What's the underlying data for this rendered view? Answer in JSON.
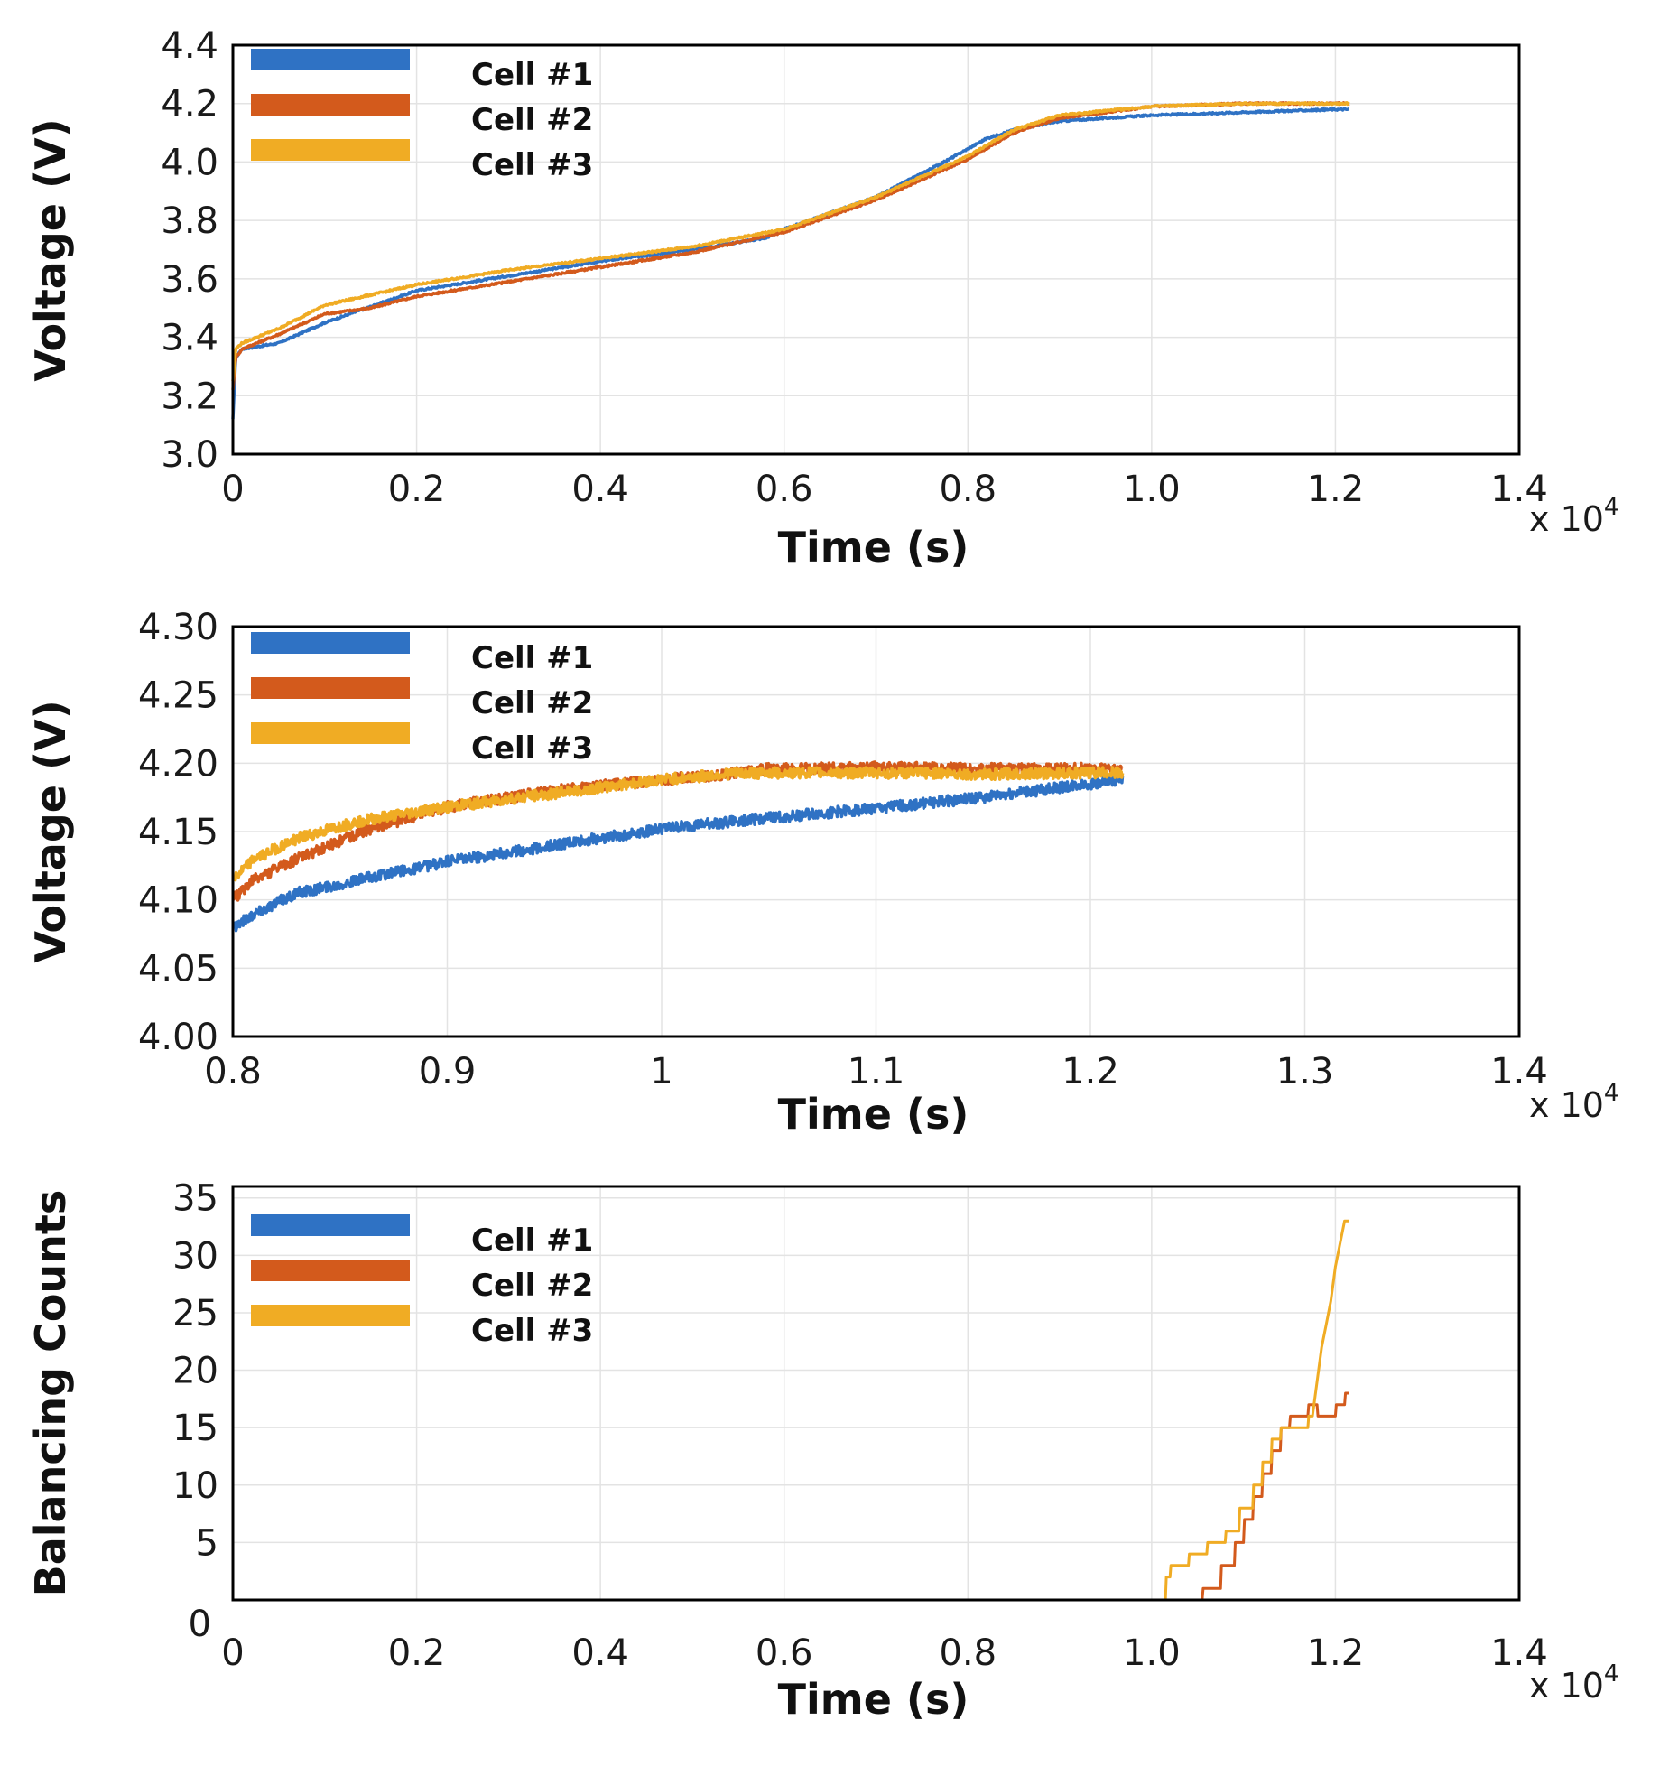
{
  "colors": {
    "cell1": "#2f72c4",
    "cell2": "#d35a1c",
    "cell3": "#f0ac24",
    "grid": "#e3e3e3",
    "axis": "#000000"
  },
  "chart_data": [
    {
      "type": "line",
      "title": "",
      "xlabel": "Time (s)",
      "ylabel": "Voltage (V)",
      "x_multiplier": "x 10",
      "x_multiplier_exp": "4",
      "xlim": [
        0,
        1.4
      ],
      "ylim": [
        3.0,
        4.4
      ],
      "xticks": [
        0,
        0.2,
        0.4,
        0.6,
        0.8,
        1.0,
        1.2,
        1.4
      ],
      "xtick_labels": [
        "0",
        "0.2",
        "0.4",
        "0.6",
        "0.8",
        "1.0",
        "1.2",
        "1.4"
      ],
      "yticks": [
        3.0,
        3.2,
        3.4,
        3.6,
        3.8,
        4.0,
        4.2,
        4.4
      ],
      "ytick_labels": [
        "3.0",
        "3.2",
        "3.4",
        "3.6",
        "3.8",
        "4.0",
        "4.2",
        "4.4"
      ],
      "grid": true,
      "noise": 0.003,
      "legend": "top-left",
      "series": [
        {
          "name": "Cell #1",
          "color_key": "cell1",
          "x": [
            0,
            0.003,
            0.01,
            0.05,
            0.1,
            0.2,
            0.3,
            0.4,
            0.5,
            0.58,
            0.6,
            0.7,
            0.78,
            0.82,
            0.85,
            0.9,
            1.0,
            1.1,
            1.2,
            1.215
          ],
          "y": [
            3.12,
            3.33,
            3.36,
            3.38,
            3.45,
            3.56,
            3.61,
            3.66,
            3.7,
            3.74,
            3.77,
            3.88,
            4.01,
            4.08,
            4.11,
            4.14,
            4.16,
            4.17,
            4.18,
            4.18
          ]
        },
        {
          "name": "Cell #2",
          "color_key": "cell2",
          "x": [
            0,
            0.003,
            0.01,
            0.05,
            0.1,
            0.15,
            0.2,
            0.3,
            0.4,
            0.5,
            0.6,
            0.7,
            0.8,
            0.85,
            0.9,
            1.0,
            1.1,
            1.2,
            1.215
          ],
          "y": [
            3.22,
            3.33,
            3.36,
            3.41,
            3.48,
            3.5,
            3.54,
            3.59,
            3.64,
            3.69,
            3.76,
            3.87,
            4.01,
            4.1,
            4.15,
            4.19,
            4.2,
            4.2,
            4.2
          ]
        },
        {
          "name": "Cell #3",
          "color_key": "cell3",
          "x": [
            0,
            0.003,
            0.01,
            0.05,
            0.1,
            0.2,
            0.3,
            0.4,
            0.5,
            0.6,
            0.7,
            0.8,
            0.85,
            0.9,
            1.0,
            1.1,
            1.2,
            1.215
          ],
          "y": [
            3.25,
            3.36,
            3.38,
            3.43,
            3.51,
            3.58,
            3.63,
            3.67,
            3.71,
            3.77,
            3.88,
            4.02,
            4.11,
            4.16,
            4.19,
            4.2,
            4.2,
            4.2
          ]
        }
      ]
    },
    {
      "type": "line",
      "title": "",
      "xlabel": "Time (s)",
      "ylabel": "Voltage (V)",
      "x_multiplier": "x 10",
      "x_multiplier_exp": "4",
      "xlim": [
        0.8,
        1.4
      ],
      "ylim": [
        4.0,
        4.3
      ],
      "xticks": [
        0.8,
        0.9,
        1.0,
        1.1,
        1.2,
        1.3,
        1.4
      ],
      "xtick_labels": [
        "0.8",
        "0.9",
        "1",
        "1.1",
        "1.2",
        "1.3",
        "1.4"
      ],
      "yticks": [
        4.0,
        4.05,
        4.1,
        4.15,
        4.2,
        4.25,
        4.3
      ],
      "ytick_labels": [
        "4.00",
        "4.05",
        "4.10",
        "4.15",
        "4.20",
        "4.25",
        "4.30"
      ],
      "grid": true,
      "noise": 0.004,
      "legend": "top-left",
      "series": [
        {
          "name": "Cell #1",
          "color_key": "cell1",
          "x": [
            0.8,
            0.81,
            0.83,
            0.86,
            0.9,
            0.95,
            1.0,
            1.05,
            1.1,
            1.15,
            1.2,
            1.215
          ],
          "y": [
            4.08,
            4.09,
            4.105,
            4.115,
            4.128,
            4.14,
            4.152,
            4.16,
            4.167,
            4.175,
            4.185,
            4.188
          ]
        },
        {
          "name": "Cell #2",
          "color_key": "cell2",
          "x": [
            0.8,
            0.81,
            0.83,
            0.86,
            0.9,
            0.95,
            1.0,
            1.03,
            1.05,
            1.1,
            1.15,
            1.2,
            1.215
          ],
          "y": [
            4.1,
            4.115,
            4.13,
            4.15,
            4.168,
            4.18,
            4.188,
            4.192,
            4.196,
            4.197,
            4.196,
            4.196,
            4.195
          ]
        },
        {
          "name": "Cell #3",
          "color_key": "cell3",
          "x": [
            0.8,
            0.81,
            0.83,
            0.86,
            0.9,
            0.95,
            1.0,
            1.03,
            1.05,
            1.1,
            1.15,
            1.2,
            1.215
          ],
          "y": [
            4.115,
            4.13,
            4.145,
            4.158,
            4.168,
            4.178,
            4.188,
            4.192,
            4.193,
            4.193,
            4.192,
            4.193,
            4.193
          ]
        }
      ]
    },
    {
      "type": "line",
      "title": "",
      "xlabel": "Time (s)",
      "ylabel": "Balancing Counts",
      "x_multiplier": "x 10",
      "x_multiplier_exp": "4",
      "xlim": [
        0,
        1.4
      ],
      "ylim": [
        0,
        36
      ],
      "xticks": [
        0,
        0.2,
        0.4,
        0.6,
        0.8,
        1.0,
        1.2,
        1.4
      ],
      "xtick_labels": [
        "0",
        "0.2",
        "0.4",
        "0.6",
        "0.8",
        "1.0",
        "1.2",
        "1.4"
      ],
      "yticks": [
        5,
        10,
        15,
        20,
        25,
        30,
        35
      ],
      "ytick_labels": [
        "5",
        "10",
        "15",
        "20",
        "25",
        "30",
        "35"
      ],
      "extra_tick_label": "0",
      "grid": true,
      "noise": 0,
      "legend": "top-left",
      "series": [
        {
          "name": "Cell #1",
          "color_key": "cell1",
          "x": [
            0,
            1.215
          ],
          "y": [
            0,
            0
          ]
        },
        {
          "name": "Cell #2",
          "color_key": "cell2",
          "x": [
            0,
            1.055,
            1.056,
            1.075,
            1.076,
            1.09,
            1.091,
            1.1,
            1.101,
            1.11,
            1.111,
            1.12,
            1.121,
            1.13,
            1.131,
            1.14,
            1.141,
            1.15,
            1.151,
            1.17,
            1.171,
            1.18,
            1.181,
            1.2,
            1.201,
            1.21,
            1.211,
            1.215
          ],
          "y": [
            0,
            0,
            1,
            1,
            3,
            3,
            5,
            5,
            7,
            7,
            9,
            9,
            11,
            11,
            13,
            13,
            15,
            15,
            16,
            16,
            17,
            17,
            16,
            16,
            17,
            17,
            18,
            18
          ]
        },
        {
          "name": "Cell #3",
          "color_key": "cell3",
          "x": [
            0,
            1.015,
            1.016,
            1.02,
            1.021,
            1.04,
            1.041,
            1.06,
            1.061,
            1.08,
            1.081,
            1.095,
            1.096,
            1.11,
            1.111,
            1.12,
            1.121,
            1.13,
            1.131,
            1.14,
            1.141,
            1.17,
            1.171,
            1.175,
            1.18,
            1.185,
            1.19,
            1.195,
            1.2,
            1.205,
            1.21,
            1.215
          ],
          "y": [
            0,
            0,
            2,
            2,
            3,
            3,
            4,
            4,
            5,
            5,
            6,
            6,
            8,
            8,
            10,
            10,
            12,
            12,
            14,
            14,
            15,
            15,
            16,
            16,
            19,
            22,
            24,
            26,
            29,
            31,
            33,
            33
          ]
        }
      ]
    }
  ]
}
